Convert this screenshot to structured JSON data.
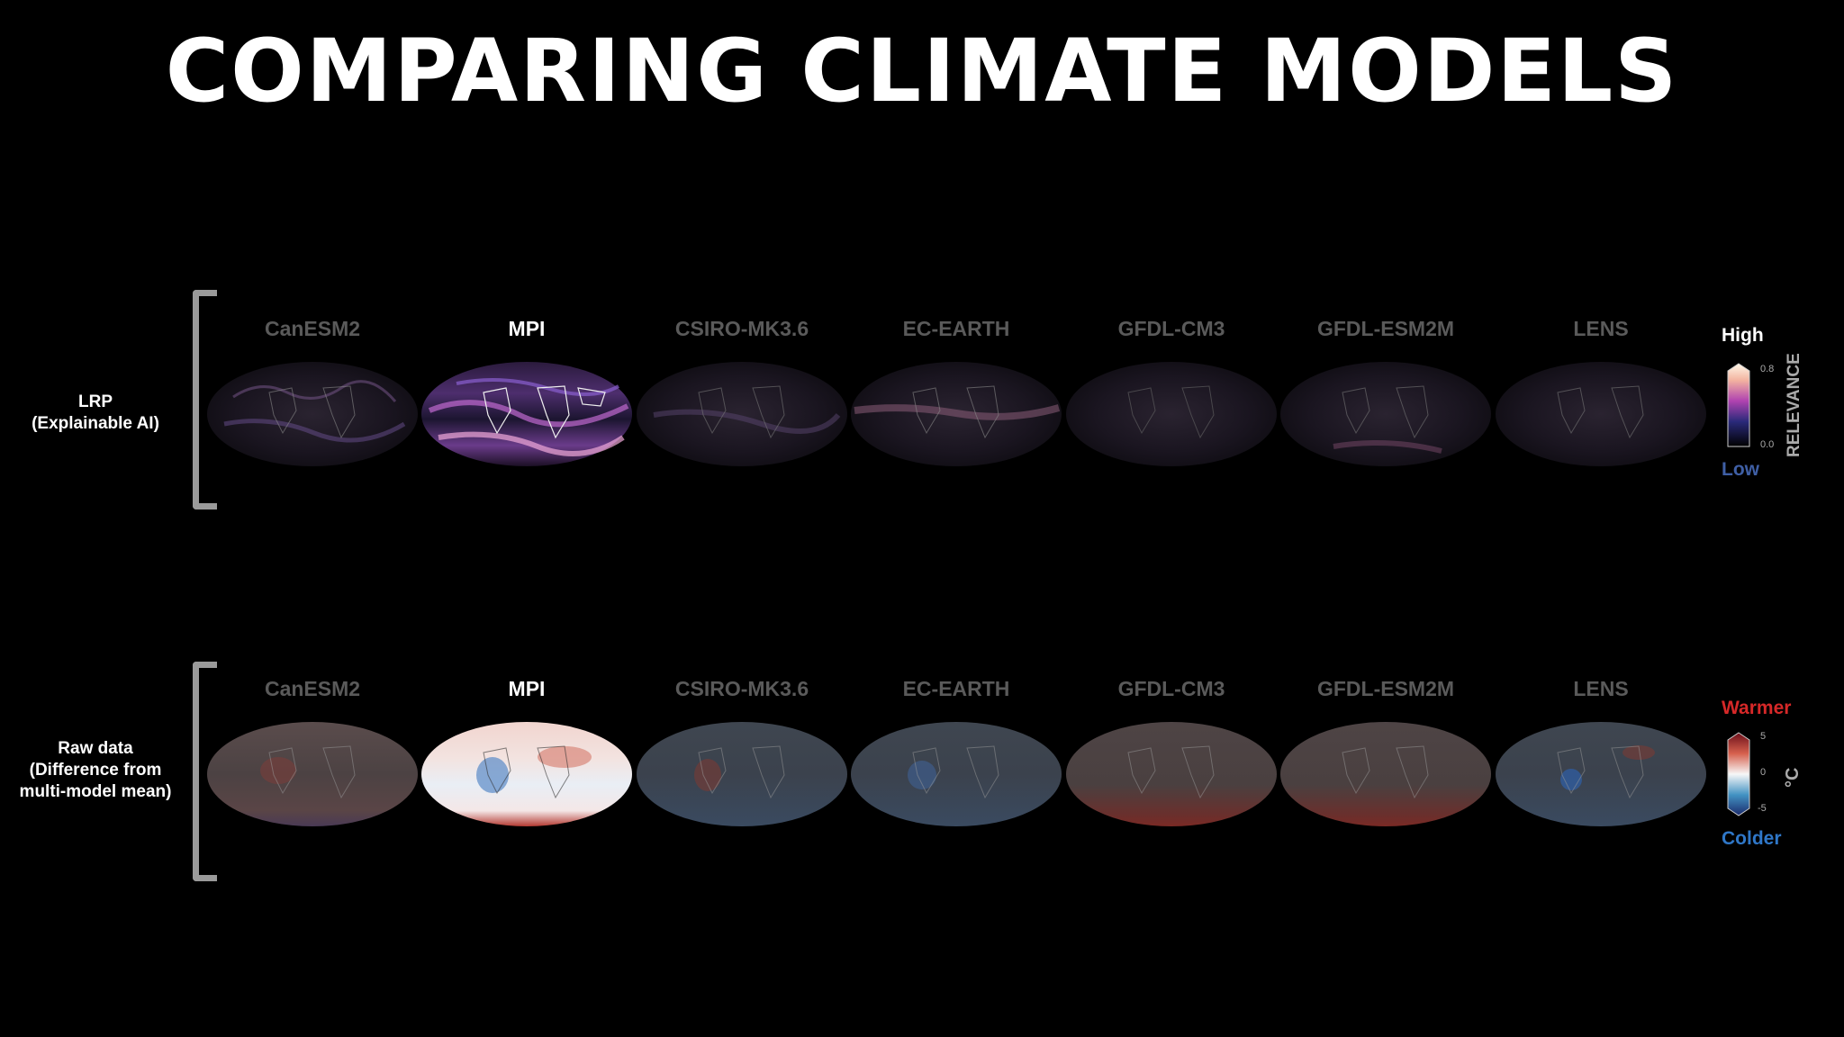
{
  "title": "COMPARING CLIMATE MODELS",
  "models": [
    "CanESM2",
    "MPI",
    "CSIRO-MK3.6",
    "EC-EARTH",
    "GFDL-CM3",
    "GFDL-ESM2M",
    "LENS"
  ],
  "highlighted_model": "MPI",
  "rows": [
    {
      "label_line1": "LRP",
      "label_line2": "(Explainable AI)",
      "label_line3": ""
    },
    {
      "label_line1": "Raw data",
      "label_line2": "(Difference from",
      "label_line3": "multi-model mean)"
    }
  ],
  "legend_relevance": {
    "high": "High",
    "low": "Low",
    "max": "0.8",
    "min": "0.0",
    "axis": "RELEVANCE"
  },
  "legend_temp": {
    "warm": "Warmer",
    "cold": "Colder",
    "max": "5",
    "mid": "0",
    "min": "-5",
    "unit": "°C"
  },
  "colors": {
    "warm": "#d62828",
    "cold": "#2f77c8",
    "low": "#3f5fa5",
    "high": "#ffffff",
    "muted": "#5a5a5a"
  }
}
